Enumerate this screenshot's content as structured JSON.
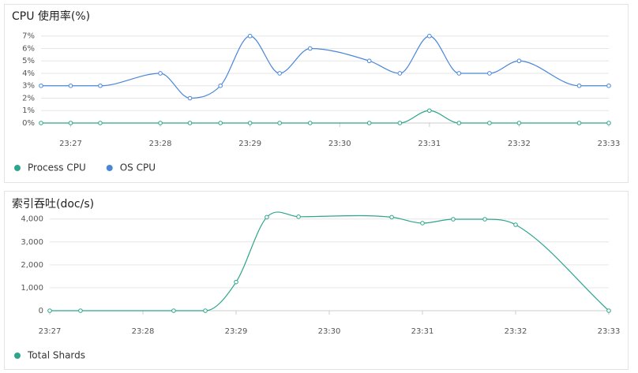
{
  "chart_data": [
    {
      "type": "line",
      "title": "CPU 使用率(%)",
      "x": [
        1406.67,
        1407,
        1407.33,
        1408,
        1408.33,
        1408.67,
        1409,
        1409.33,
        1409.67,
        1410.33,
        1410.67,
        1411,
        1411.33,
        1411.67,
        1412,
        1412.67,
        1413
      ],
      "series": [
        {
          "name": "Process CPU",
          "color": "#2ea58c",
          "values": [
            0,
            0,
            0,
            0,
            0,
            0,
            0,
            0,
            0,
            0,
            0,
            1,
            0,
            0,
            0,
            0,
            0
          ]
        },
        {
          "name": "OS CPU",
          "color": "#4a86d8",
          "values": [
            3,
            3,
            3,
            4,
            2,
            3,
            7,
            4,
            6,
            5,
            4,
            7,
            4,
            4,
            5,
            3,
            3
          ]
        }
      ],
      "xlim": [
        1406.67,
        1413
      ],
      "xticks": [
        {
          "value": 1407,
          "label": "23:27"
        },
        {
          "value": 1408,
          "label": "23:28"
        },
        {
          "value": 1409,
          "label": "23:29"
        },
        {
          "value": 1410,
          "label": "23:30"
        },
        {
          "value": 1411,
          "label": "23:31"
        },
        {
          "value": 1412,
          "label": "23:32"
        },
        {
          "value": 1413,
          "label": "23:33"
        }
      ],
      "ylim": [
        0,
        7.3
      ],
      "yticks": [
        {
          "value": 0,
          "label": "0%"
        },
        {
          "value": 1,
          "label": "1%"
        },
        {
          "value": 2,
          "label": "2%"
        },
        {
          "value": 3,
          "label": "3%"
        },
        {
          "value": 4,
          "label": "4%"
        },
        {
          "value": 5,
          "label": "5%"
        },
        {
          "value": 6,
          "label": "6%"
        },
        {
          "value": 7,
          "label": "7%"
        }
      ],
      "grid": true,
      "legend": "bottom-left"
    },
    {
      "type": "line",
      "title": "索引吞吐(doc/s)",
      "x": [
        1407,
        1407.33,
        1408.33,
        1408.67,
        1409,
        1409.33,
        1409.67,
        1410.67,
        1411,
        1411.33,
        1411.67,
        1412,
        1413
      ],
      "series": [
        {
          "name": "Total Shards",
          "color": "#2ea58c",
          "values": [
            0,
            0,
            0,
            0,
            1250,
            4080,
            4100,
            4080,
            3820,
            3990,
            3990,
            3750,
            0
          ]
        }
      ],
      "xlim": [
        1407,
        1413
      ],
      "xticks": [
        {
          "value": 1407,
          "label": "23:27"
        },
        {
          "value": 1408,
          "label": "23:28"
        },
        {
          "value": 1409,
          "label": "23:29"
        },
        {
          "value": 1410,
          "label": "23:30"
        },
        {
          "value": 1411,
          "label": "23:31"
        },
        {
          "value": 1412,
          "label": "23:32"
        },
        {
          "value": 1413,
          "label": "23:33"
        }
      ],
      "ylim": [
        0,
        4300
      ],
      "yticks": [
        0,
        {
          "value": 1000,
          "label": "1,000"
        },
        {
          "value": 2000,
          "label": "2,000"
        },
        {
          "value": 3000,
          "label": "3,000"
        },
        {
          "value": 4000,
          "label": "4,000"
        }
      ],
      "grid": true,
      "legend": "bottom-left"
    }
  ]
}
